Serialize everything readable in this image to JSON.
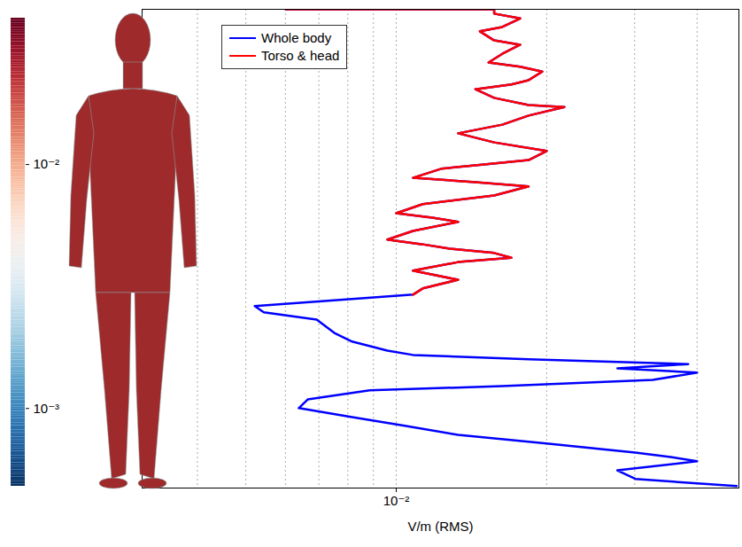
{
  "chart_data": {
    "type": "line",
    "x_label": "V/m (RMS)",
    "log": "x",
    "grid": true,
    "legend": "upper left",
    "tick_labels": "x",
    "xlim": [
      0.0031,
      0.0485
    ],
    "xticks": [
      {
        "value": 0.01,
        "label": "10⁻²"
      }
    ],
    "xminor": [
      0.004,
      0.005,
      0.006,
      0.007,
      0.008,
      0.009,
      0.02,
      0.03,
      0.04
    ],
    "ylim": [
      0,
      1
    ],
    "series": [
      {
        "name": "Whole body",
        "color": "#0000ff",
        "x": [
          0.00601,
          0.0157,
          0.0157,
          0.0177,
          0.0163,
          0.0147,
          0.0157,
          0.0177,
          0.0163,
          0.0153,
          0.0177,
          0.0196,
          0.0184,
          0.017,
          0.0144,
          0.0157,
          0.0184,
          0.0217,
          0.0184,
          0.0163,
          0.0133,
          0.0157,
          0.02,
          0.0184,
          0.015,
          0.0123,
          0.0108,
          0.0144,
          0.0184,
          0.0157,
          0.0113,
          0.01,
          0.0118,
          0.0133,
          0.0108,
          0.0096,
          0.0113,
          0.0128,
          0.0157,
          0.017,
          0.0133,
          0.0108,
          0.0133,
          0.0113,
          0.0108,
          0.00521,
          0.00543,
          0.00693,
          0.00752,
          0.00816,
          0.0096,
          0.0108,
          0.0184,
          0.0384,
          0.0277,
          0.04,
          0.0326,
          0.0163,
          0.00885,
          0.00665,
          0.00638,
          0.00816,
          0.0104,
          0.0133,
          0.02,
          0.0301,
          0.0354,
          0.04,
          0.0277,
          0.0301,
          0.048
        ],
        "y": [
          1.0,
          1.0,
          0.991,
          0.981,
          0.963,
          0.954,
          0.935,
          0.926,
          0.907,
          0.889,
          0.88,
          0.87,
          0.852,
          0.843,
          0.833,
          0.815,
          0.8,
          0.796,
          0.778,
          0.759,
          0.741,
          0.722,
          0.704,
          0.685,
          0.676,
          0.667,
          0.648,
          0.639,
          0.63,
          0.611,
          0.593,
          0.574,
          0.565,
          0.556,
          0.537,
          0.519,
          0.509,
          0.5,
          0.491,
          0.481,
          0.472,
          0.454,
          0.435,
          0.417,
          0.404,
          0.38,
          0.367,
          0.352,
          0.324,
          0.306,
          0.287,
          0.278,
          0.269,
          0.259,
          0.25,
          0.241,
          0.226,
          0.213,
          0.204,
          0.185,
          0.167,
          0.148,
          0.13,
          0.111,
          0.093,
          0.074,
          0.065,
          0.056,
          0.037,
          0.019,
          0.004
        ]
      },
      {
        "name": "Torso & head",
        "color": "#ff0000",
        "x": [
          0.00601,
          0.0157,
          0.0157,
          0.0177,
          0.0163,
          0.0147,
          0.0157,
          0.0177,
          0.0163,
          0.0153,
          0.0177,
          0.0196,
          0.0184,
          0.017,
          0.0144,
          0.0157,
          0.0184,
          0.0217,
          0.0184,
          0.0163,
          0.0133,
          0.0157,
          0.02,
          0.0184,
          0.015,
          0.0123,
          0.0108,
          0.0144,
          0.0184,
          0.0157,
          0.0113,
          0.01,
          0.0118,
          0.0133,
          0.0108,
          0.0096,
          0.0113,
          0.0128,
          0.0157,
          0.017,
          0.0133,
          0.0108,
          0.0133,
          0.0113,
          0.0108
        ],
        "y": [
          1.0,
          1.0,
          0.991,
          0.981,
          0.963,
          0.954,
          0.935,
          0.926,
          0.907,
          0.889,
          0.88,
          0.87,
          0.852,
          0.843,
          0.833,
          0.815,
          0.8,
          0.796,
          0.778,
          0.759,
          0.741,
          0.722,
          0.704,
          0.685,
          0.676,
          0.667,
          0.648,
          0.639,
          0.63,
          0.611,
          0.593,
          0.574,
          0.565,
          0.556,
          0.537,
          0.519,
          0.509,
          0.5,
          0.491,
          0.481,
          0.472,
          0.454,
          0.435,
          0.417,
          0.404
        ]
      }
    ],
    "colorbar": {
      "lim": [
        0.00048,
        0.0398
      ],
      "ticks": [
        {
          "value": 0.01,
          "label": "10⁻²"
        },
        {
          "value": 0.001,
          "label": "10⁻³"
        }
      ]
    }
  }
}
